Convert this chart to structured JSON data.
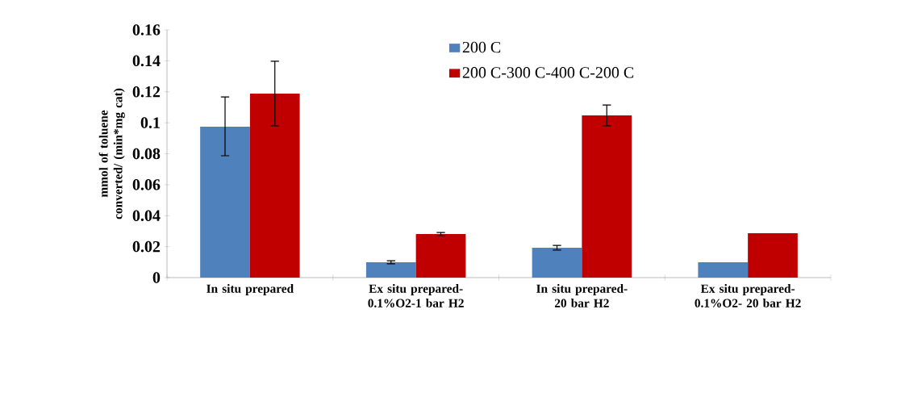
{
  "chart_data": {
    "type": "bar",
    "ylabel": "mmol of toluene converted/ (min*mg cat)",
    "categories": [
      "In situ prepared",
      "Ex situ prepared-0.1%O2-1 bar H2",
      "In situ prepared-20 bar H2",
      "Ex situ prepared-0.1%O2- 20 bar H2"
    ],
    "series": [
      {
        "name": "200 C",
        "color": "#4f81bd",
        "values": [
          0.0974,
          0.0099,
          0.0193,
          0.0099
        ],
        "errors": [
          [
            0.0787,
            0.1167
          ],
          0.001,
          0.0015,
          null
        ]
      },
      {
        "name": "200 C-300 C-400 C-200 C",
        "color": "#c00000",
        "values": [
          0.1188,
          0.0281,
          0.1047,
          0.0287
        ],
        "errors": [
          [
            0.098,
            0.1397
          ],
          0.001,
          [
            0.098,
            0.1115
          ],
          null
        ]
      }
    ],
    "ylim": [
      0,
      0.16
    ],
    "yticks": [
      0,
      0.02,
      0.04,
      0.06,
      0.08,
      0.1,
      0.12,
      0.14,
      0.16
    ],
    "legend": "top"
  }
}
